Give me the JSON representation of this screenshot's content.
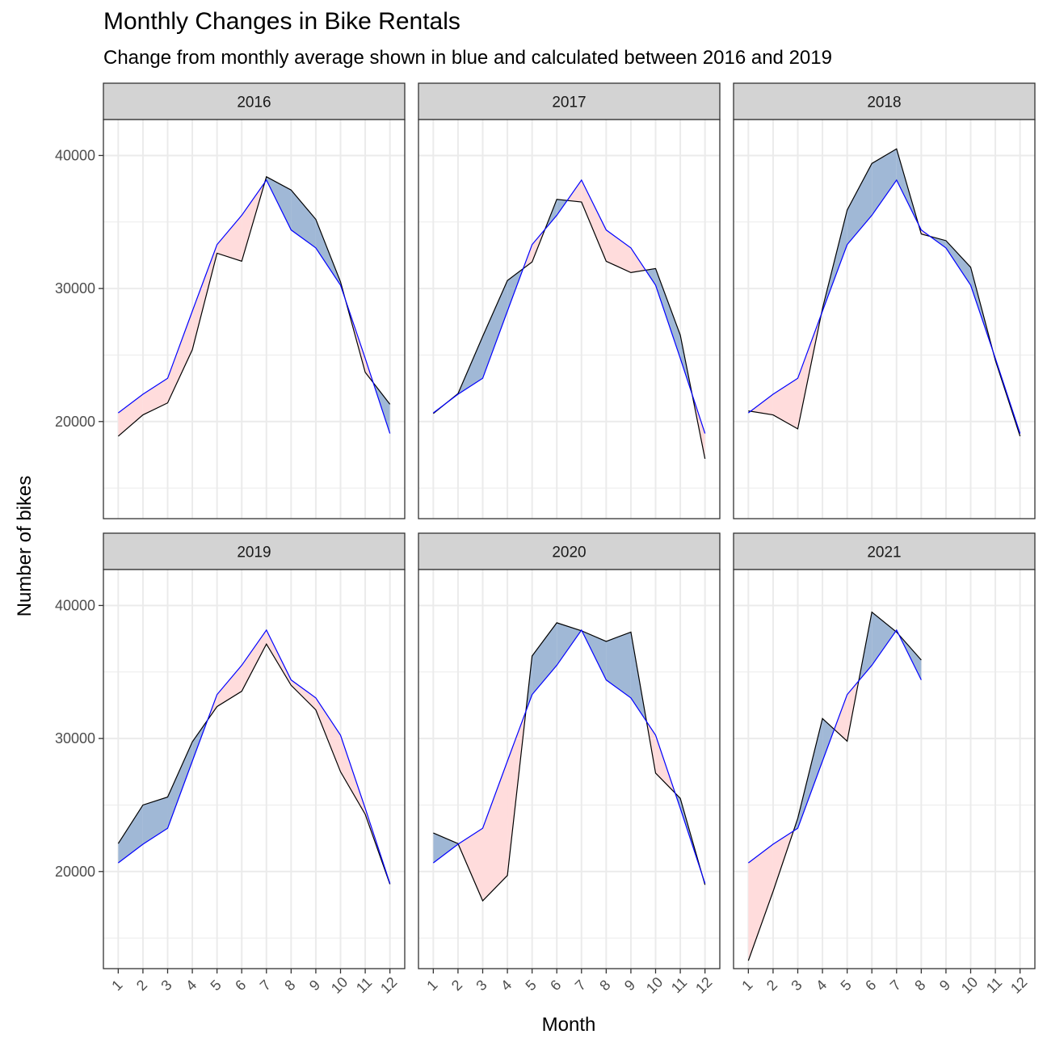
{
  "chart_data": {
    "type": "area",
    "title": "Monthly Changes in Bike Rentals",
    "subtitle": "Change from monthly average shown in blue and calculated between 2016 and 2019",
    "xlabel": "Month",
    "ylabel": "Number of bikes",
    "x_ticks": [
      1,
      2,
      3,
      4,
      5,
      6,
      7,
      8,
      9,
      10,
      11,
      12
    ],
    "y_ticks": [
      20000,
      30000,
      40000
    ],
    "xlim": [
      0.4,
      12.6
    ],
    "ylim": [
      12700,
      42700
    ],
    "facet_order": [
      "2016",
      "2017",
      "2018",
      "2019",
      "2020",
      "2021"
    ],
    "colors": {
      "average_line": "#0000ff",
      "actual_line": "#000000",
      "above_average_fill": "#a0b8d6",
      "below_average_fill": "#ffdcdc",
      "strip_fill": "#d3d3d3",
      "grid": "#ebebeb"
    },
    "monthly_average": {
      "name": "monthly average",
      "values": [
        20650,
        22050,
        23250,
        28300,
        33300,
        35500,
        38150,
        34400,
        33050,
        30250,
        24750,
        19100
      ]
    },
    "facets": [
      {
        "label": "2016",
        "values": [
          18900,
          20500,
          21400,
          25400,
          32650,
          32050,
          38400,
          37400,
          35200,
          30500,
          23700,
          21300
        ]
      },
      {
        "label": "2017",
        "values": [
          20600,
          22100,
          26400,
          30600,
          32000,
          36700,
          36500,
          32050,
          31200,
          31500,
          26500,
          17200
        ]
      },
      {
        "label": "2018",
        "values": [
          20800,
          20500,
          19450,
          28500,
          35900,
          39400,
          40500,
          34100,
          33600,
          31600,
          24600,
          18900
        ]
      },
      {
        "label": "2019",
        "values": [
          22100,
          25000,
          25600,
          29750,
          32400,
          33550,
          37100,
          34000,
          32150,
          27500,
          24300,
          19050
        ]
      },
      {
        "label": "2020",
        "values": [
          22900,
          22100,
          17800,
          19700,
          36200,
          38700,
          38100,
          37300,
          38000,
          27400,
          25500,
          19000
        ]
      },
      {
        "label": "2021",
        "values": [
          13300,
          18500,
          24000,
          31500,
          29800,
          39500,
          38000,
          35900
        ]
      }
    ]
  }
}
